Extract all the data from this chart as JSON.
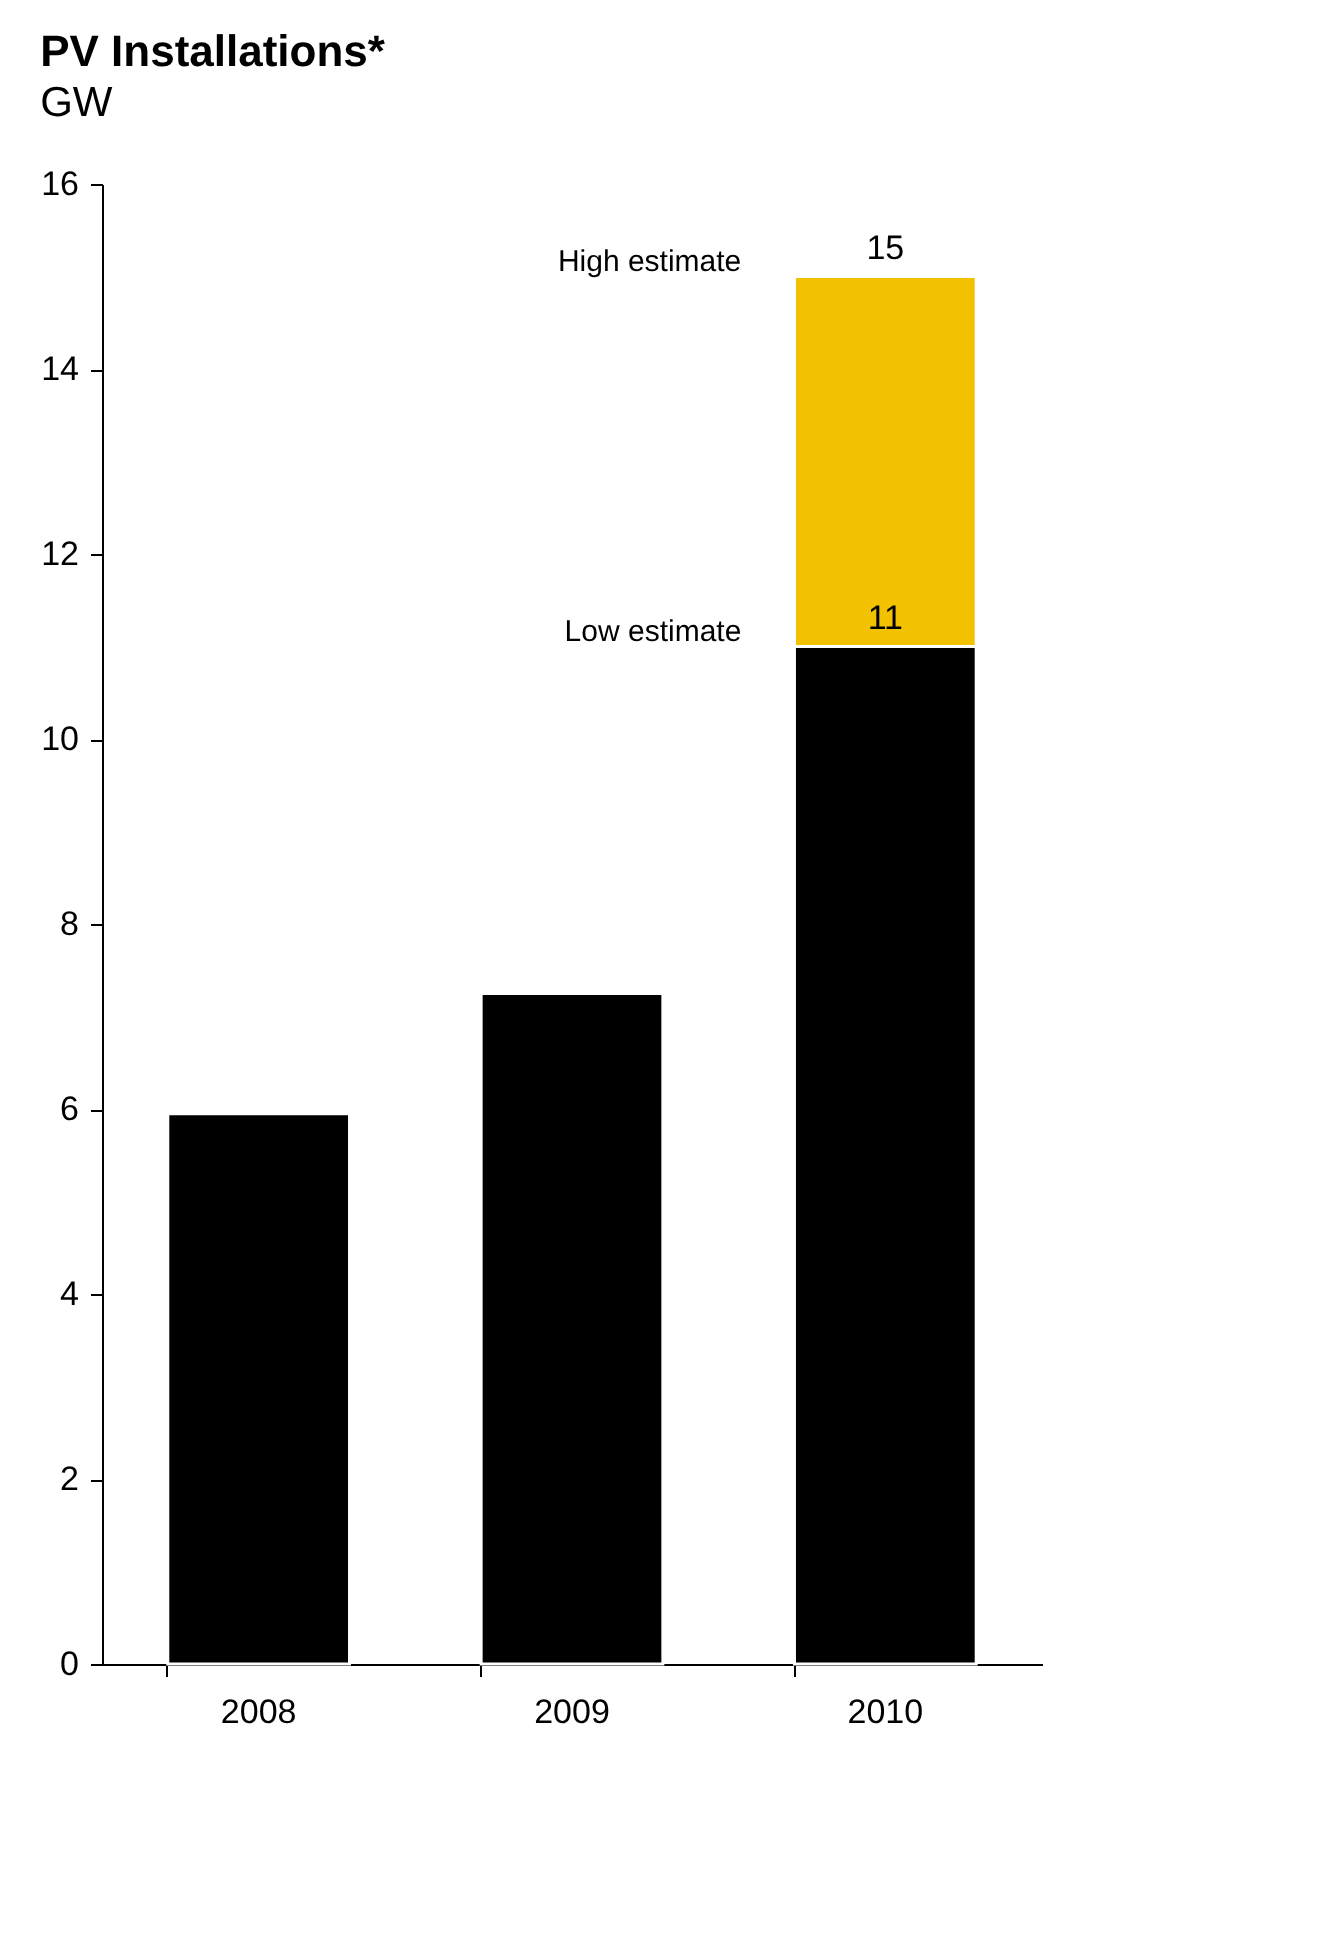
{
  "chart_data": {
    "type": "bar",
    "title": "PV Installations*",
    "subtitle": "GW",
    "stacked": true,
    "categories": [
      "2008",
      "2009",
      "2010"
    ],
    "series": [
      {
        "color": "#000000",
        "values": [
          5.95,
          7.25,
          11
        ],
        "value_labels": [
          null,
          null,
          "11"
        ]
      },
      {
        "color": "#f2c200",
        "values": [
          null,
          null,
          4
        ]
      }
    ],
    "totals": [
      null,
      null,
      "15"
    ],
    "annotations": [
      "Low estimate",
      "High estimate"
    ],
    "ylim": [
      0,
      16
    ],
    "yticks": [
      0,
      2,
      4,
      6,
      8,
      10,
      12,
      14,
      16
    ],
    "grid": false
  }
}
